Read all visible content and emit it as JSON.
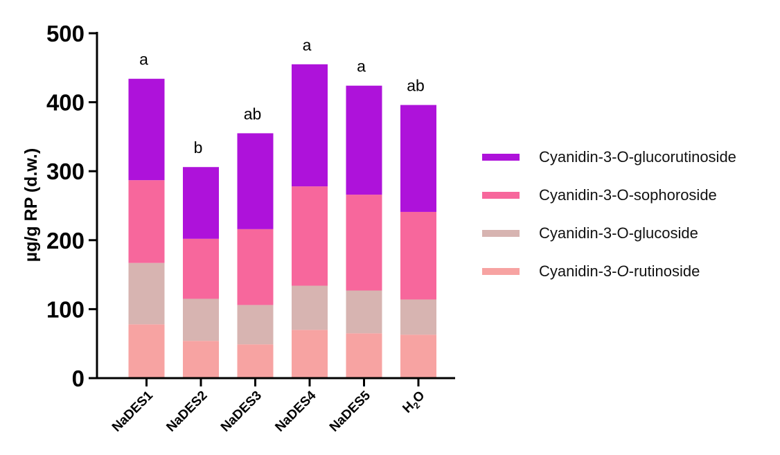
{
  "chart_data": {
    "type": "bar",
    "stacked": true,
    "ylabel": "µg/g RP (d.w.)",
    "xlabel": "",
    "ylim": [
      0,
      500
    ],
    "yticks": [
      0,
      100,
      200,
      300,
      400,
      500
    ],
    "categories": [
      "NaDES1",
      "NaDES2",
      "NaDES3",
      "NaDES4",
      "NaDES5",
      "H2O"
    ],
    "letters": [
      "a",
      "b",
      "ab",
      "a",
      "a",
      "ab"
    ],
    "legend_position": "right",
    "series": [
      {
        "name": "Cyanidin-3-O-rutinoside",
        "color": "#f7a3a2",
        "values": [
          78,
          54,
          49,
          70,
          65,
          63
        ]
      },
      {
        "name": "Cyanidin-3-O-glucoside",
        "color": "#d7b4b1",
        "values": [
          89,
          61,
          57,
          64,
          62,
          51
        ]
      },
      {
        "name": "Cyanidin-3-O-sophoroside",
        "color": "#f7679c",
        "values": [
          120,
          87,
          110,
          144,
          139,
          127
        ]
      },
      {
        "name": "Cyanidin-3-O-glucorutinoside",
        "color": "#ae12da",
        "values": [
          147,
          104,
          139,
          177,
          158,
          155
        ]
      }
    ]
  },
  "legend": [
    {
      "prefix": "Cyanidin-3-O-glucorutinoside",
      "italic": "",
      "suffix": "",
      "color": "#ae12da"
    },
    {
      "prefix": "Cyanidin-3-O-sophoroside",
      "italic": "",
      "suffix": "",
      "color": "#f7679c"
    },
    {
      "prefix": "Cyanidin-3-O-glucoside",
      "italic": "",
      "suffix": "",
      "color": "#d7b4b1"
    },
    {
      "prefix": "Cyanidin-3-",
      "italic": "O",
      "suffix": "-rutinoside",
      "color": "#f7a3a2"
    }
  ]
}
